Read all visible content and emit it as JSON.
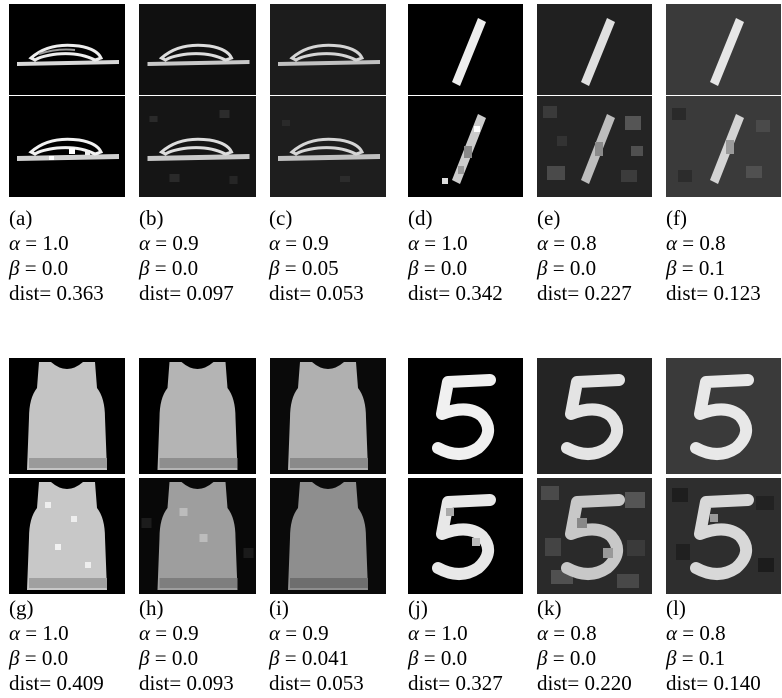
{
  "figure": {
    "rows": [
      {
        "panels": [
          {
            "label": "(a)",
            "alpha": "1.0",
            "beta": "0.0",
            "dist": "0.363"
          },
          {
            "label": "(b)",
            "alpha": "0.9",
            "beta": "0.0",
            "dist": "0.097"
          },
          {
            "label": "(c)",
            "alpha": "0.9",
            "beta": "0.05",
            "dist": "0.053"
          },
          {
            "label": "(d)",
            "alpha": "1.0",
            "beta": "0.0",
            "dist": "0.342"
          },
          {
            "label": "(e)",
            "alpha": "0.8",
            "beta": "0.0",
            "dist": "0.227"
          },
          {
            "label": "(f)",
            "alpha": "0.8",
            "beta": "0.1",
            "dist": "0.123"
          }
        ]
      },
      {
        "panels": [
          {
            "label": "(g)",
            "alpha": "1.0",
            "beta": "0.0",
            "dist": "0.409"
          },
          {
            "label": "(h)",
            "alpha": "0.9",
            "beta": "0.0",
            "dist": "0.093"
          },
          {
            "label": "(i)",
            "alpha": "0.9",
            "beta": "0.041",
            "dist": "0.053"
          },
          {
            "label": "(j)",
            "alpha": "1.0",
            "beta": "0.0",
            "dist": "0.327"
          },
          {
            "label": "(k)",
            "alpha": "0.8",
            "beta": "0.0",
            "dist": "0.220"
          },
          {
            "label": "(l)",
            "alpha": "0.8",
            "beta": "0.1",
            "dist": "0.140"
          }
        ]
      }
    ],
    "text": {
      "alpha_symbol": "α",
      "beta_symbol": "β",
      "equals": " = ",
      "dist_prefix": "dist= "
    },
    "image_contents": {
      "row1_left": "sandal-icon",
      "row1_right": "digit-one-icon",
      "row2_left": "tank-top-icon",
      "row2_right": "digit-five-icon"
    }
  }
}
